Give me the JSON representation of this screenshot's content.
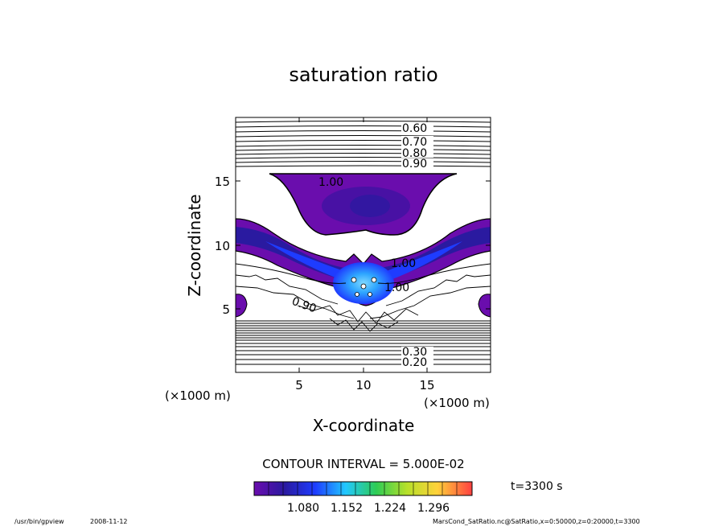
{
  "chart_data": {
    "type": "heatmap",
    "title": "saturation ratio",
    "xlabel": "X-coordinate",
    "ylabel": "Z-coordinate",
    "x_unit": "(×1000 m)",
    "y_unit": "(×1000 m)",
    "xlim": [
      0,
      20
    ],
    "ylim": [
      0,
      20
    ],
    "x_ticks": [
      "5",
      "10",
      "15"
    ],
    "y_ticks": [
      "5",
      "10",
      "15"
    ],
    "contour_interval": "CONTOUR INTERVAL = 5.000E-02",
    "contour_labels": [
      "0.60",
      "0.70",
      "0.80",
      "0.90",
      "1.00",
      "1.00",
      "1.00",
      "0.90",
      "0.30",
      "0.20"
    ],
    "colorbar_ticks": [
      "1.080",
      "1.152",
      "1.224",
      "1.296"
    ],
    "colorbar_range": [
      1.0,
      1.33
    ],
    "time_label": "t=3300 s"
  },
  "footer": {
    "program": "/usr/bin/gpview",
    "date": "2008-11-12",
    "source": "MarsCond_SatRatio.nc@SatRatio,x=0:50000,z=0:20000,t=3300"
  },
  "colors": {
    "low": "#6a0dad",
    "mid": "#1e3cff",
    "high": "#2ea6ff"
  }
}
